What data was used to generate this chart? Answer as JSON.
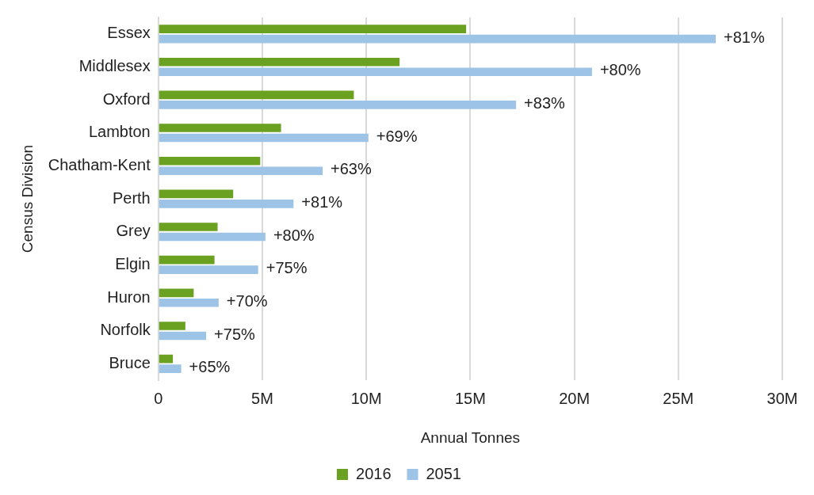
{
  "chart_data": {
    "type": "bar",
    "orientation": "horizontal",
    "xlabel": "Annual Tonnes",
    "ylabel": "Census Division",
    "categories": [
      "Essex",
      "Middlesex",
      "Oxford",
      "Lambton",
      "Chatham-Kent",
      "Perth",
      "Grey",
      "Elgin",
      "Huron",
      "Norfolk",
      "Bruce"
    ],
    "series": [
      {
        "name": "2016",
        "color": "#6aa121",
        "values": [
          14.8,
          11.6,
          9.4,
          5.9,
          4.9,
          3.6,
          2.85,
          2.7,
          1.7,
          1.3,
          0.7
        ]
      },
      {
        "name": "2051",
        "color": "#9dc3e6",
        "values": [
          26.8,
          20.85,
          17.2,
          10.1,
          7.9,
          6.5,
          5.15,
          4.8,
          2.9,
          2.3,
          1.1
        ]
      }
    ],
    "annotations": [
      {
        "text": "+81%",
        "x": 26.8,
        "y": "Essex"
      },
      {
        "text": "+80%",
        "x": 20.85,
        "y": "Middlesex"
      },
      {
        "text": "+83%",
        "x": 17.2,
        "y": "Oxford"
      },
      {
        "text": "+69%",
        "x": 10.1,
        "y": "Lambton"
      },
      {
        "text": "+63%",
        "x": 7.9,
        "y": "Chatham-Kent"
      },
      {
        "text": "+81%",
        "x": 6.5,
        "y": "Perth"
      },
      {
        "text": "+80%",
        "x": 5.15,
        "y": "Grey"
      },
      {
        "text": "+75%",
        "x": 4.8,
        "y": "Elgin"
      },
      {
        "text": "+70%",
        "x": 2.9,
        "y": "Huron"
      },
      {
        "text": "+75%",
        "x": 2.3,
        "y": "Norfolk"
      },
      {
        "text": "+65%",
        "x": 1.1,
        "y": "Bruce"
      }
    ],
    "xlim": [
      0,
      30
    ],
    "xticks": [
      0,
      {
        "value": 5,
        "label": "5M"
      },
      {
        "value": 10,
        "label": "10M"
      },
      {
        "value": 15,
        "label": "15M"
      },
      {
        "value": 20,
        "label": "20M"
      },
      {
        "value": 25,
        "label": "25M"
      },
      {
        "value": 30,
        "label": "30M"
      }
    ],
    "grid": "x",
    "legend": "bottom"
  }
}
